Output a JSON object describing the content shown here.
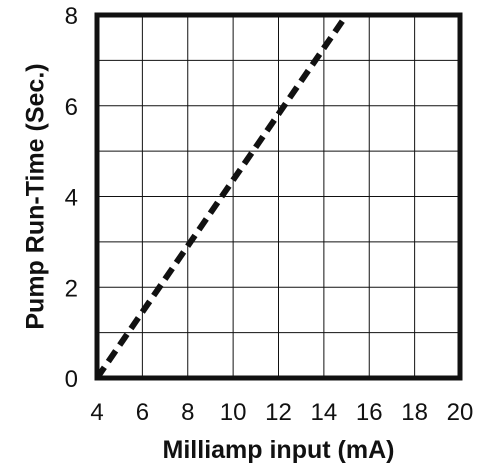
{
  "chart_data": {
    "type": "line",
    "title": "",
    "xlabel": "Milliamp input (mA)",
    "ylabel": "Pump Run-Time (Sec.)",
    "xlim": [
      4,
      20
    ],
    "ylim": [
      0,
      8
    ],
    "x_ticks": [
      4,
      6,
      8,
      10,
      12,
      14,
      16,
      18,
      20
    ],
    "y_ticks": [
      0,
      2,
      4,
      6,
      8
    ],
    "x_tick_labels": [
      "4",
      "6",
      "8",
      "10",
      "12",
      "14",
      "16",
      "18",
      "20"
    ],
    "y_tick_labels": [
      "0",
      "2",
      "4",
      "6",
      "8"
    ],
    "grid": true,
    "legend": "none",
    "series": [
      {
        "style": "dashed",
        "color": "#111111",
        "x": [
          4,
          15
        ],
        "y": [
          0,
          8
        ]
      }
    ],
    "colors": {
      "frame": "#111111",
      "grid": "#111111",
      "background": "#ffffff"
    }
  }
}
